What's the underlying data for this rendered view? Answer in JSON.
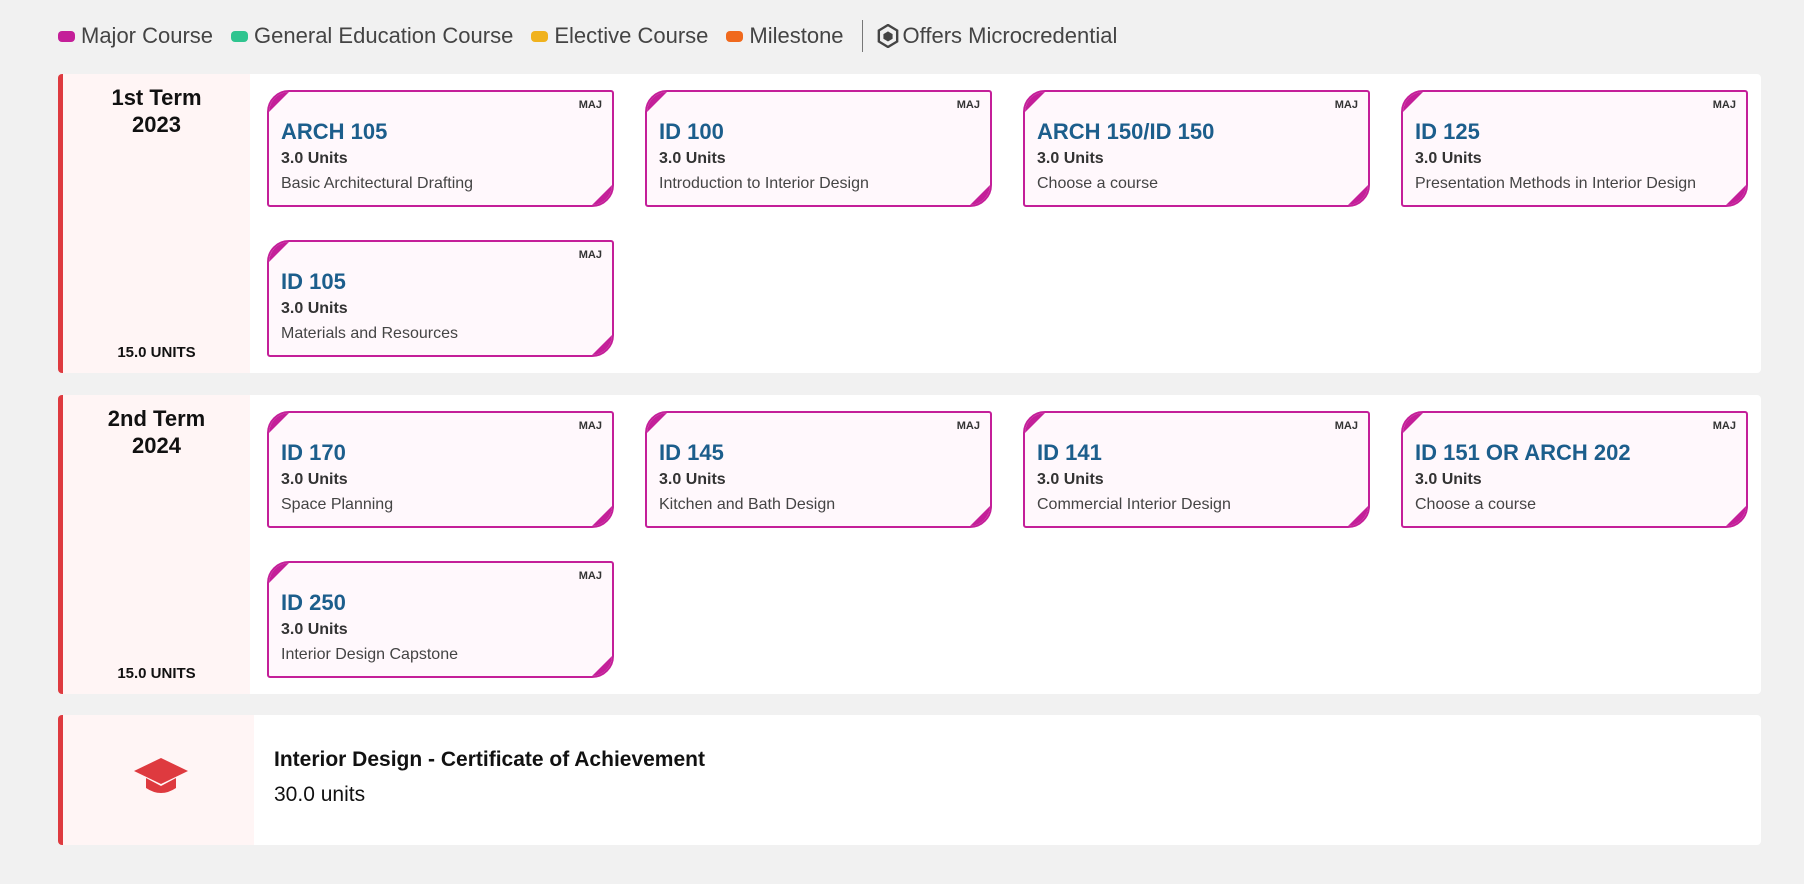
{
  "legend": {
    "items": [
      {
        "label": "Major Course",
        "color": "#c41f99"
      },
      {
        "label": "General Education Course",
        "color": "#2fc48f"
      },
      {
        "label": "Elective Course",
        "color": "#f0b21d"
      },
      {
        "label": "Milestone",
        "color": "#f0691d"
      }
    ],
    "microcredential_label": "Offers Microcredential",
    "microcredential_icon": "hexagon-icon"
  },
  "terms": [
    {
      "title_line1": "1st Term",
      "title_line2": "2023",
      "units": "15.0 UNITS",
      "courses": [
        {
          "tag": "MAJ",
          "code": "ARCH 105",
          "units": "3.0 Units",
          "name": "Basic Architectural Drafting"
        },
        {
          "tag": "MAJ",
          "code": "ID 100",
          "units": "3.0 Units",
          "name": "Introduction to Interior Design"
        },
        {
          "tag": "MAJ",
          "code": "ARCH 150/ID 150",
          "units": "3.0 Units",
          "name": "Choose a course"
        },
        {
          "tag": "MAJ",
          "code": "ID 125",
          "units": "3.0 Units",
          "name": "Presentation Methods in Interior Design"
        },
        {
          "tag": "MAJ",
          "code": "ID 105",
          "units": "3.0 Units",
          "name": "Materials and Resources"
        }
      ]
    },
    {
      "title_line1": "2nd Term",
      "title_line2": "2024",
      "units": "15.0 UNITS",
      "courses": [
        {
          "tag": "MAJ",
          "code": "ID 170",
          "units": "3.0 Units",
          "name": "Space Planning"
        },
        {
          "tag": "MAJ",
          "code": "ID 145",
          "units": "3.0 Units",
          "name": "Kitchen and Bath Design"
        },
        {
          "tag": "MAJ",
          "code": "ID 141",
          "units": "3.0 Units",
          "name": "Commercial Interior Design"
        },
        {
          "tag": "MAJ",
          "code": "ID 151 OR ARCH 202",
          "units": "3.0 Units",
          "name": "Choose a course"
        },
        {
          "tag": "MAJ",
          "code": "ID 250",
          "units": "3.0 Units",
          "name": "Interior Design Capstone"
        }
      ]
    }
  ],
  "certificate": {
    "icon": "graduation-cap-icon",
    "title": "Interior Design - Certificate of Achievement",
    "units": "30.0 units"
  }
}
